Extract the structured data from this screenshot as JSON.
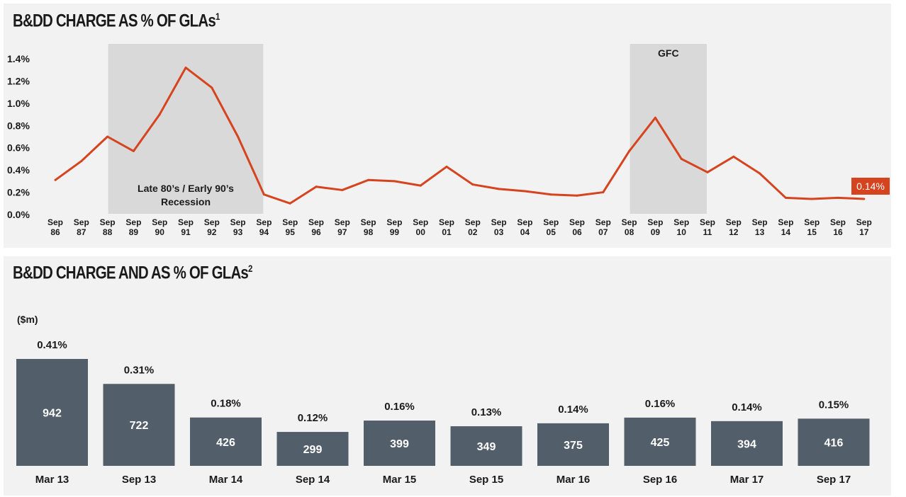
{
  "top": {
    "title": "B&DD CHARGE AS % OF GLAs",
    "title_sup": "1"
  },
  "bottom": {
    "title": "B&DD CHARGE AND AS % OF GLAs",
    "title_sup": "2"
  },
  "colors": {
    "line": "#d6441f",
    "bar": "#525e6a",
    "shade": "#d9d9d9",
    "panel": "#f2f2f2",
    "callout": "#d6441f"
  },
  "chart_data": [
    {
      "type": "line",
      "title": "B&DD CHARGE AS % OF GLAs",
      "x": [
        "Sep 86",
        "Sep 87",
        "Sep 88",
        "Sep 89",
        "Sep 90",
        "Sep 91",
        "Sep 92",
        "Sep 93",
        "Sep 94",
        "Sep 95",
        "Sep 96",
        "Sep 97",
        "Sep 98",
        "Sep 99",
        "Sep 00",
        "Sep 01",
        "Sep 02",
        "Sep 03",
        "Sep 04",
        "Sep 05",
        "Sep 06",
        "Sep 07",
        "Sep 08",
        "Sep 09",
        "Sep 10",
        "Sep 11",
        "Sep 12",
        "Sep 13",
        "Sep 14",
        "Sep 15",
        "Sep 16",
        "Sep 17"
      ],
      "y": [
        0.31,
        0.48,
        0.7,
        0.57,
        0.9,
        1.32,
        1.14,
        0.7,
        0.18,
        0.1,
        0.25,
        0.22,
        0.31,
        0.3,
        0.26,
        0.43,
        0.27,
        0.23,
        0.21,
        0.18,
        0.17,
        0.2,
        0.57,
        0.87,
        0.5,
        0.38,
        0.52,
        0.37,
        0.15,
        0.14,
        0.15,
        0.14
      ],
      "y_ticks": [
        "0.0%",
        "0.2%",
        "0.4%",
        "0.6%",
        "0.8%",
        "1.0%",
        "1.2%",
        "1.4%"
      ],
      "ylim": [
        0,
        1.4
      ],
      "grid": false,
      "shaded_regions": [
        {
          "label": "Late 80’s / Early 90’s Recession",
          "start": "Sep 88",
          "end": "Sep 94"
        },
        {
          "label": "GFC",
          "start": "Sep 08",
          "end": "Sep 11"
        }
      ],
      "end_label": "0.14%"
    },
    {
      "type": "bar",
      "title": "B&DD CHARGE AND AS % OF GLAs",
      "ylabel": "($m)",
      "categories": [
        "Mar 13",
        "Sep 13",
        "Mar 14",
        "Sep 14",
        "Mar 15",
        "Sep 15",
        "Mar 16",
        "Sep 16",
        "Mar 17",
        "Sep 17"
      ],
      "values": [
        942,
        722,
        426,
        299,
        399,
        349,
        375,
        425,
        394,
        416
      ],
      "pct_labels": [
        "0.41%",
        "0.31%",
        "0.18%",
        "0.12%",
        "0.16%",
        "0.13%",
        "0.14%",
        "0.16%",
        "0.14%",
        "0.15%"
      ]
    }
  ]
}
